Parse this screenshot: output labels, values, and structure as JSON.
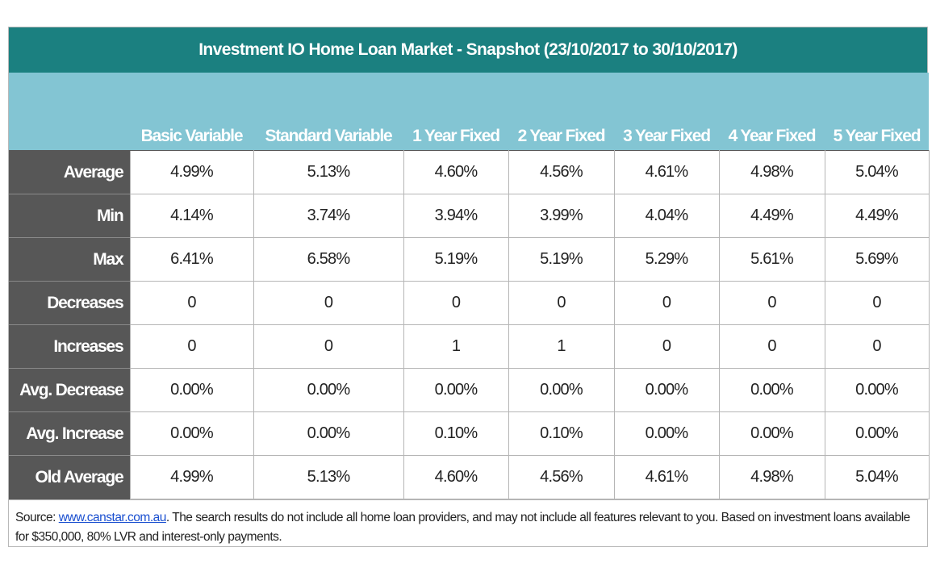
{
  "title": "Investment IO Home Loan Market - Snapshot (23/10/2017 to 30/10/2017)",
  "columns": [
    "Basic Variable",
    "Standard Variable",
    "1 Year Fixed",
    "2 Year Fixed",
    "3 Year Fixed",
    "4 Year Fixed",
    "5 Year Fixed"
  ],
  "rows": [
    {
      "label": "Average",
      "values": [
        "4.99%",
        "5.13%",
        "4.60%",
        "4.56%",
        "4.61%",
        "4.98%",
        "5.04%"
      ]
    },
    {
      "label": "Min",
      "values": [
        "4.14%",
        "3.74%",
        "3.94%",
        "3.99%",
        "4.04%",
        "4.49%",
        "4.49%"
      ]
    },
    {
      "label": "Max",
      "values": [
        "6.41%",
        "6.58%",
        "5.19%",
        "5.19%",
        "5.29%",
        "5.61%",
        "5.69%"
      ]
    },
    {
      "label": "Decreases",
      "values": [
        "0",
        "0",
        "0",
        "0",
        "0",
        "0",
        "0"
      ]
    },
    {
      "label": "Increases",
      "values": [
        "0",
        "0",
        "1",
        "1",
        "0",
        "0",
        "0"
      ]
    },
    {
      "label": "Avg. Decrease",
      "values": [
        "0.00%",
        "0.00%",
        "0.00%",
        "0.00%",
        "0.00%",
        "0.00%",
        "0.00%"
      ]
    },
    {
      "label": "Avg. Increase",
      "values": [
        "0.00%",
        "0.00%",
        "0.10%",
        "0.10%",
        "0.00%",
        "0.00%",
        "0.00%"
      ]
    },
    {
      "label": "Old Average",
      "values": [
        "4.99%",
        "5.13%",
        "4.60%",
        "4.56%",
        "4.61%",
        "4.98%",
        "5.04%"
      ]
    }
  ],
  "source": {
    "prefix": "Source: ",
    "link_text": "www.canstar.com.au",
    "suffix": ". The search results do not include all home loan providers, and may not include all features relevant to you. Based on investment loans available for $350,000, 80% LVR and interest-only payments."
  },
  "colors": {
    "title_bg": "#1b8080",
    "header_bg": "#83c5d3",
    "row_label_bg": "#575757",
    "link": "#1a4fd0"
  }
}
